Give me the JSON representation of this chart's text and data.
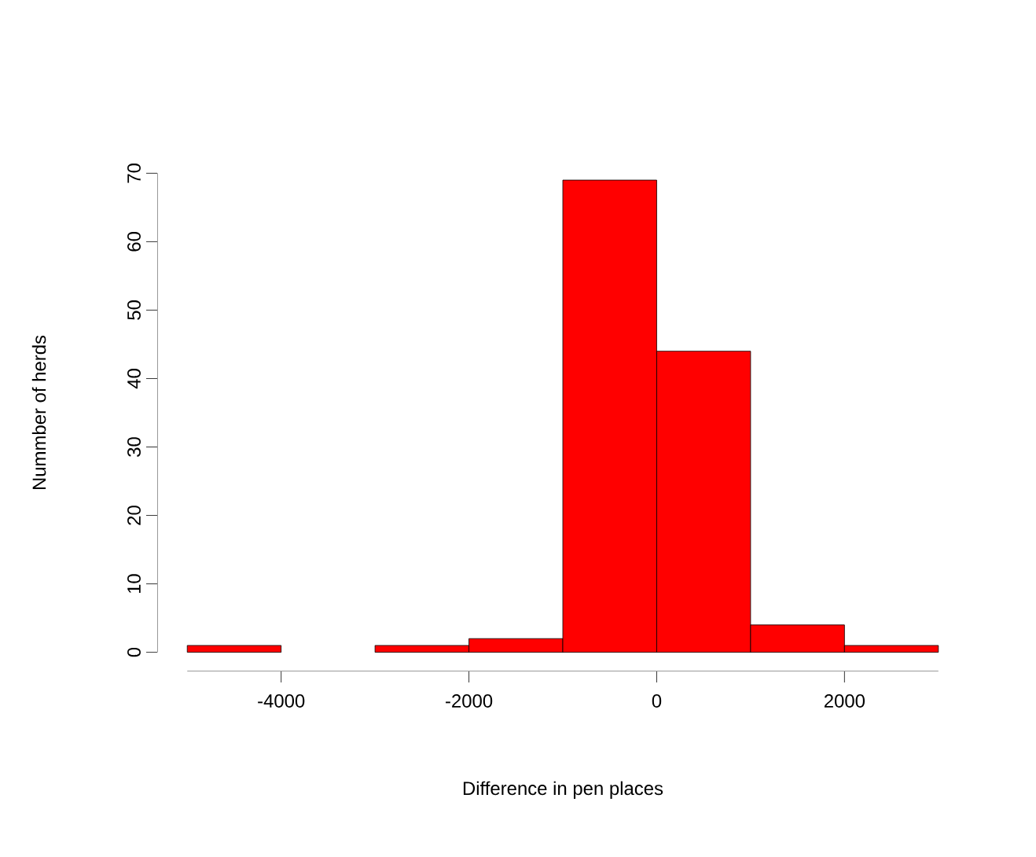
{
  "chart_data": {
    "type": "histogram",
    "xlabel": "Difference in pen places",
    "ylabel": "Nummber of herds",
    "bins": [
      -5000,
      -4000,
      -3000,
      -2000,
      -1000,
      0,
      1000,
      2000,
      3000
    ],
    "values": [
      1,
      0,
      1,
      2,
      69,
      44,
      4,
      1
    ],
    "color": "#ff0000",
    "xlim": [
      -5000,
      3000
    ],
    "ylim": [
      0,
      70
    ],
    "xticks": [
      -4000,
      -2000,
      0,
      2000
    ],
    "yticks": [
      0,
      10,
      20,
      30,
      40,
      50,
      60,
      70
    ]
  }
}
